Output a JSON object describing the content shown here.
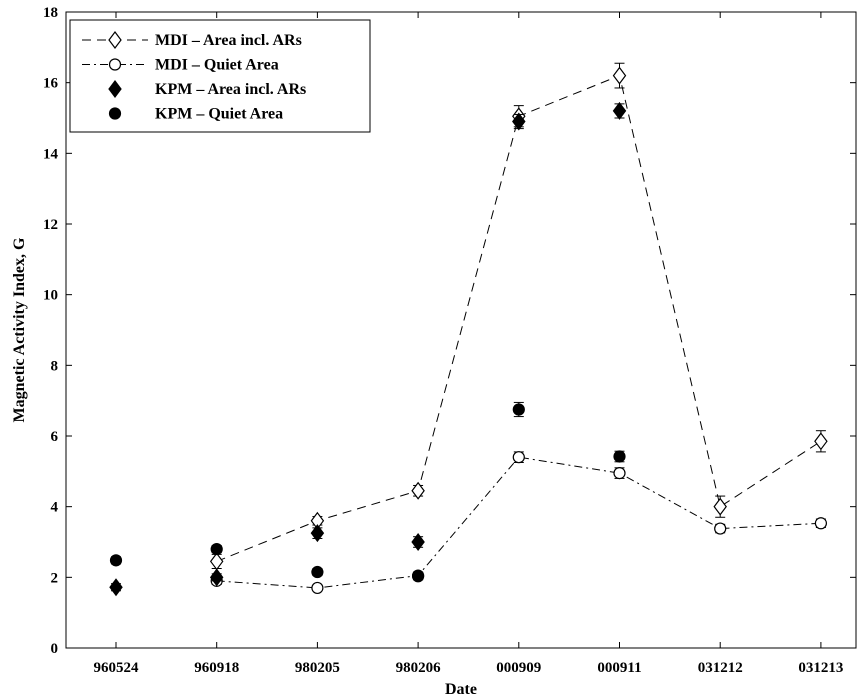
{
  "chart_data": {
    "type": "line",
    "xlabel": "Date",
    "ylabel": "Magnetic Activity Index, G",
    "categories": [
      "960524",
      "960918",
      "980205",
      "980206",
      "000909",
      "000911",
      "031212",
      "031213"
    ],
    "ylim": [
      0,
      18
    ],
    "yticks": [
      0,
      2,
      4,
      6,
      8,
      10,
      12,
      14,
      16,
      18
    ],
    "grid": false,
    "legend_position": "top-left",
    "series": [
      {
        "name": "MDI – Area incl. ARs",
        "marker": "open-diamond",
        "line": "dashed",
        "values": [
          null,
          2.45,
          3.6,
          4.45,
          15.05,
          16.2,
          4.0,
          5.85
        ],
        "errors": [
          null,
          0.2,
          0.12,
          0.15,
          0.3,
          0.35,
          0.3,
          0.3
        ]
      },
      {
        "name": "MDI – Quiet Area",
        "marker": "open-circle",
        "line": "dash-dot",
        "values": [
          null,
          1.9,
          1.7,
          2.05,
          5.4,
          4.95,
          3.38,
          3.53
        ],
        "errors": [
          null,
          0.1,
          0.08,
          0.1,
          0.15,
          0.15,
          0.12,
          0.12
        ]
      },
      {
        "name": "KPM – Area incl. ARs",
        "marker": "filled-diamond",
        "line": "none",
        "values": [
          1.72,
          2.0,
          3.25,
          3.0,
          14.9,
          15.2,
          null,
          null
        ],
        "errors": [
          0.1,
          0.1,
          0.15,
          0.15,
          0.2,
          0.2,
          null,
          null
        ]
      },
      {
        "name": "KPM – Quiet Area",
        "marker": "filled-circle",
        "line": "none",
        "values": [
          2.48,
          2.8,
          2.15,
          2.03,
          6.75,
          5.42,
          null,
          null
        ],
        "errors": [
          0.1,
          0.1,
          0.1,
          0.1,
          0.2,
          0.15,
          null,
          null
        ]
      }
    ]
  }
}
